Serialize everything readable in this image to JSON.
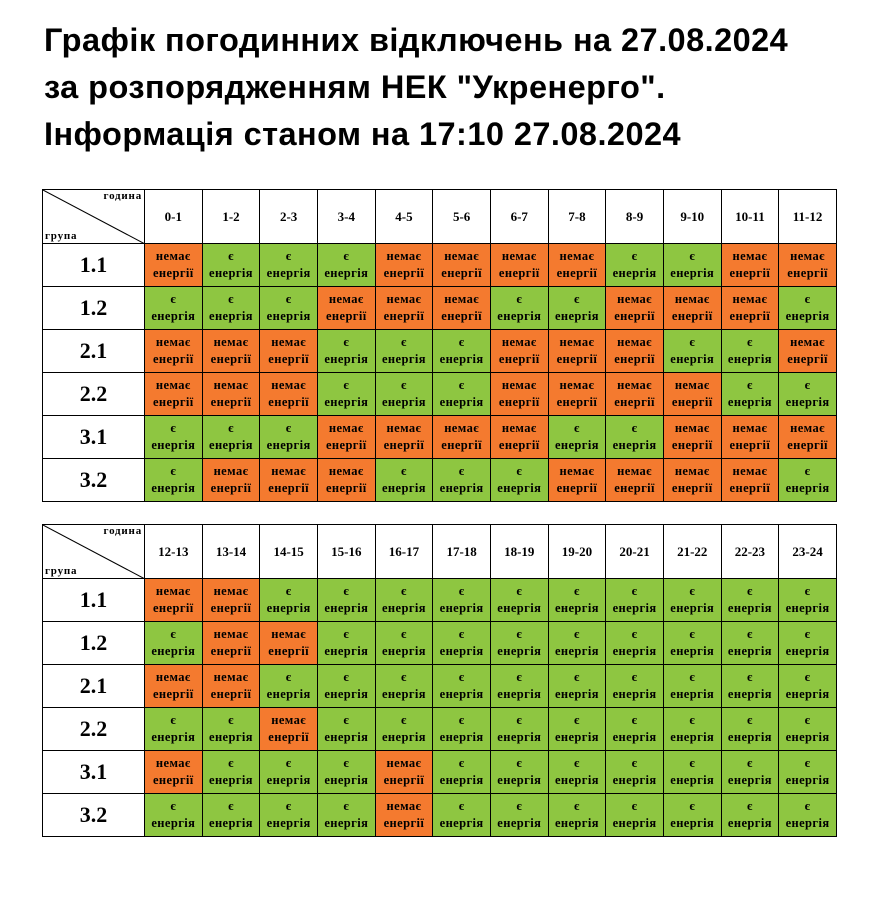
{
  "title": {
    "line1": "Графік погодинних відключень на 27.08.2024",
    "line2": "за розпорядженням НЕК \"Укренерго\".",
    "line3": "Інформація станом на 17:10 27.08.2024"
  },
  "header_labels": {
    "hour": "година",
    "group": "група"
  },
  "labels": {
    "on": [
      "є",
      "енергія"
    ],
    "off": [
      "немає",
      "енергії"
    ]
  },
  "colors": {
    "on": "#8ec641",
    "off": "#f47a2f"
  },
  "tables": [
    {
      "hours": [
        "0-1",
        "1-2",
        "2-3",
        "3-4",
        "4-5",
        "5-6",
        "6-7",
        "7-8",
        "8-9",
        "9-10",
        "10-11",
        "11-12"
      ],
      "rows": [
        {
          "group": "1.1",
          "cells": [
            "off",
            "on",
            "on",
            "on",
            "off",
            "off",
            "off",
            "off",
            "on",
            "on",
            "off",
            "off"
          ]
        },
        {
          "group": "1.2",
          "cells": [
            "on",
            "on",
            "on",
            "off",
            "off",
            "off",
            "on",
            "on",
            "off",
            "off",
            "off",
            "on"
          ]
        },
        {
          "group": "2.1",
          "cells": [
            "off",
            "off",
            "off",
            "on",
            "on",
            "on",
            "off",
            "off",
            "off",
            "on",
            "on",
            "off"
          ]
        },
        {
          "group": "2.2",
          "cells": [
            "off",
            "off",
            "off",
            "on",
            "on",
            "on",
            "off",
            "off",
            "off",
            "off",
            "on",
            "on"
          ]
        },
        {
          "group": "3.1",
          "cells": [
            "on",
            "on",
            "on",
            "off",
            "off",
            "off",
            "off",
            "on",
            "on",
            "off",
            "off",
            "off"
          ]
        },
        {
          "group": "3.2",
          "cells": [
            "on",
            "off",
            "off",
            "off",
            "on",
            "on",
            "on",
            "off",
            "off",
            "off",
            "off",
            "on"
          ]
        }
      ]
    },
    {
      "hours": [
        "12-13",
        "13-14",
        "14-15",
        "15-16",
        "16-17",
        "17-18",
        "18-19",
        "19-20",
        "20-21",
        "21-22",
        "22-23",
        "23-24"
      ],
      "rows": [
        {
          "group": "1.1",
          "cells": [
            "off",
            "off",
            "on",
            "on",
            "on",
            "on",
            "on",
            "on",
            "on",
            "on",
            "on",
            "on"
          ]
        },
        {
          "group": "1.2",
          "cells": [
            "on",
            "off",
            "off",
            "on",
            "on",
            "on",
            "on",
            "on",
            "on",
            "on",
            "on",
            "on"
          ]
        },
        {
          "group": "2.1",
          "cells": [
            "off",
            "off",
            "on",
            "on",
            "on",
            "on",
            "on",
            "on",
            "on",
            "on",
            "on",
            "on"
          ]
        },
        {
          "group": "2.2",
          "cells": [
            "on",
            "on",
            "off",
            "on",
            "on",
            "on",
            "on",
            "on",
            "on",
            "on",
            "on",
            "on"
          ]
        },
        {
          "group": "3.1",
          "cells": [
            "off",
            "on",
            "on",
            "on",
            "off",
            "on",
            "on",
            "on",
            "on",
            "on",
            "on",
            "on"
          ]
        },
        {
          "group": "3.2",
          "cells": [
            "on",
            "on",
            "on",
            "on",
            "off",
            "on",
            "on",
            "on",
            "on",
            "on",
            "on",
            "on"
          ]
        }
      ]
    }
  ]
}
